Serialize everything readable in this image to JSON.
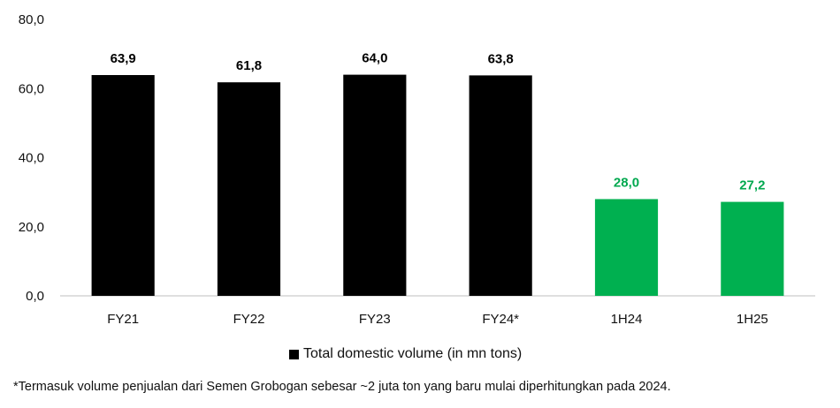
{
  "chart_data": {
    "type": "bar",
    "categories": [
      "FY21",
      "FY22",
      "FY23",
      "FY24*",
      "1H24",
      "1H25"
    ],
    "series": [
      {
        "name": "Total domestic volume (in mn tons)",
        "values": [
          63.9,
          61.8,
          64.0,
          63.8,
          28.0,
          27.2
        ],
        "labels": [
          "63,9",
          "61,8",
          "64,0",
          "63,8",
          "28,0",
          "27,2"
        ],
        "colors": [
          "#000000",
          "#000000",
          "#000000",
          "#000000",
          "#00b050",
          "#00b050"
        ],
        "label_colors": [
          "#000000",
          "#000000",
          "#000000",
          "#000000",
          "#00a84f",
          "#00a84f"
        ]
      }
    ],
    "ylim": [
      0,
      80
    ],
    "yticks": [
      0,
      20,
      40,
      60,
      80
    ],
    "ytick_labels": [
      "0,0",
      "20,0",
      "40,0",
      "60,0",
      "80,0"
    ],
    "grid": false,
    "legend_position": "bottom"
  },
  "legend": {
    "label": "Total domestic volume (in mn tons)"
  },
  "footnote": "*Termasuk volume penjualan dari Semen Grobogan sebesar ~2 juta ton yang baru mulai diperhitungkan pada 2024."
}
